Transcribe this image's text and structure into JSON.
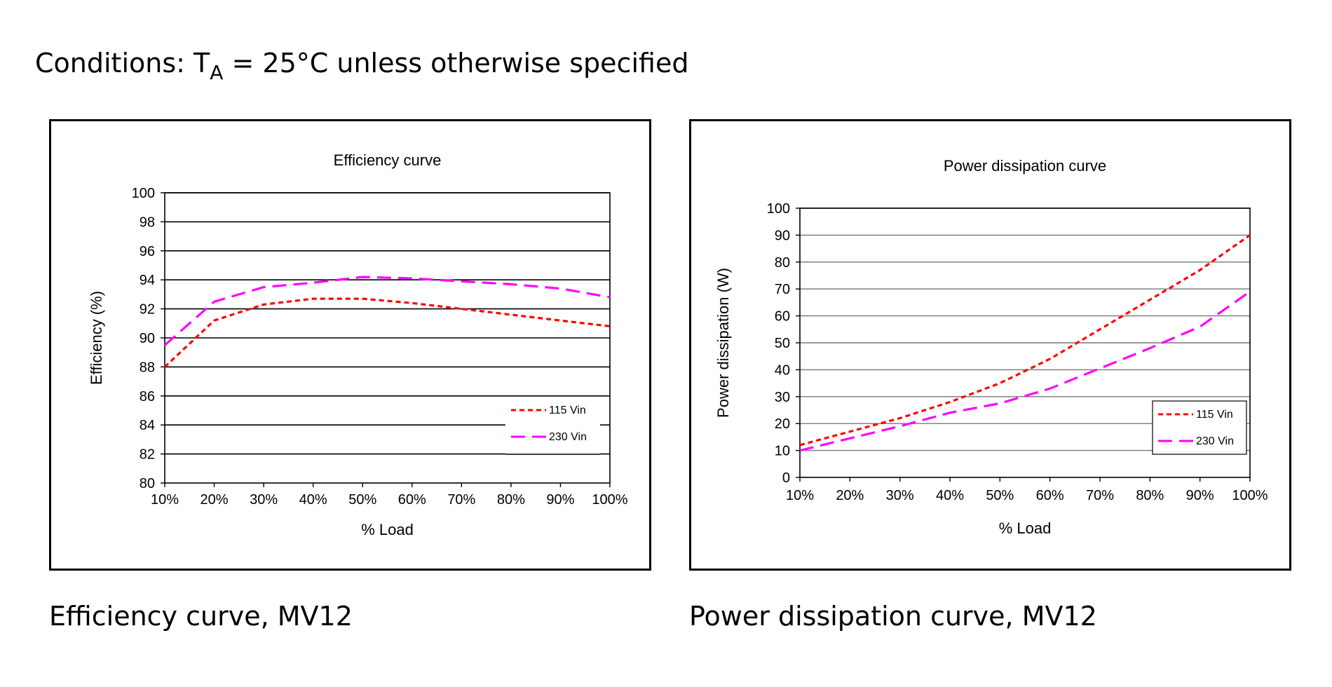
{
  "header": {
    "conditions_prefix": "Conditions: T",
    "conditions_subscript": "A",
    "conditions_suffix": " = 25°C unless otherwise specified"
  },
  "captions": {
    "efficiency": "Efficiency curve, MV12",
    "power": "Power dissipation curve, MV12"
  },
  "chart_data": [
    {
      "type": "line",
      "title": "Efficiency curve",
      "xlabel": "% Load",
      "ylabel": "Efficiency (%)",
      "categories": [
        "10%",
        "20%",
        "30%",
        "40%",
        "50%",
        "60%",
        "70%",
        "80%",
        "90%",
        "100%"
      ],
      "ylim": [
        80,
        100
      ],
      "yticks": [
        80,
        82,
        84,
        86,
        88,
        90,
        92,
        94,
        96,
        98,
        100
      ],
      "grid": true,
      "legend": "bottom-right",
      "series": [
        {
          "name": "115 Vin",
          "color": "#ff0000",
          "dash": "short-dash",
          "values": [
            88.0,
            91.2,
            92.3,
            92.7,
            92.7,
            92.4,
            92.0,
            91.6,
            91.2,
            90.8
          ]
        },
        {
          "name": "230 Vin",
          "color": "#ff00ff",
          "dash": "long-dash",
          "values": [
            89.5,
            92.5,
            93.5,
            93.8,
            94.2,
            94.1,
            93.9,
            93.7,
            93.4,
            92.8
          ]
        }
      ]
    },
    {
      "type": "line",
      "title": "Power dissipation curve",
      "xlabel": "% Load",
      "ylabel": "Power dissipation (W)",
      "categories": [
        "10%",
        "20%",
        "30%",
        "40%",
        "50%",
        "60%",
        "70%",
        "80%",
        "90%",
        "100%"
      ],
      "ylim": [
        0,
        100
      ],
      "yticks": [
        0,
        10,
        20,
        30,
        40,
        50,
        60,
        70,
        80,
        90,
        100
      ],
      "grid": true,
      "legend": "bottom-right",
      "series": [
        {
          "name": "115 Vin",
          "color": "#ff0000",
          "dash": "short-dash",
          "values": [
            12,
            17,
            22,
            28,
            35,
            44,
            55,
            66,
            77,
            90
          ]
        },
        {
          "name": "230 Vin",
          "color": "#ff00ff",
          "dash": "long-dash",
          "values": [
            10,
            14.5,
            19,
            24,
            27.5,
            33,
            40.5,
            48,
            56,
            69
          ]
        }
      ]
    }
  ]
}
